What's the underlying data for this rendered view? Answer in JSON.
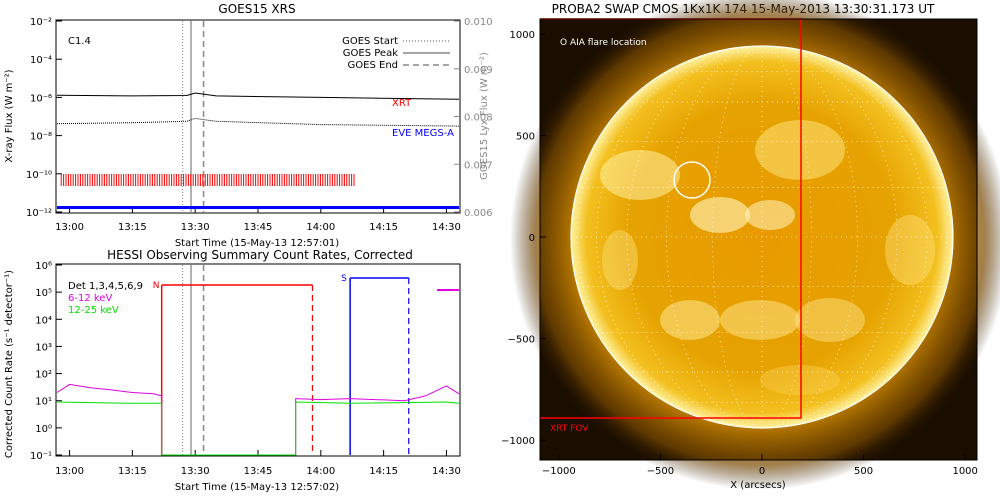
{
  "goes": {
    "title": "GOES15 XRS",
    "flare_class": "C1.4",
    "ylabel_left": "X-ray Flux (W m⁻²)",
    "ylabel_right": "GOES15 Lyx Flux (W m⁻²)",
    "xlabel": "Start Time (15-May-13 12:57:01)",
    "legend": [
      "GOES Start",
      "GOES Peak",
      "GOES End"
    ],
    "series_labels": {
      "xrt": "XRT",
      "eve": "EVE MEGS-A"
    },
    "y_ticks": [
      "10⁻²",
      "10⁻⁴",
      "10⁻⁶",
      "10⁻⁸",
      "10⁻¹⁰",
      "10⁻¹²"
    ],
    "y2_ticks": [
      "0.010",
      "0.009",
      "0.008",
      "0.007",
      "0.006"
    ],
    "x_ticks": [
      "13:00",
      "13:15",
      "13:30",
      "13:45",
      "14:00",
      "14:15",
      "14:30"
    ]
  },
  "hessi": {
    "title": "HESSI Observing Summary Count Rates, Corrected",
    "ylabel": "Corrected Count Rate (s⁻¹ detector⁻¹)",
    "xlabel": "Start Time (15-May-13 12:57:02)",
    "legend": [
      {
        "text": "Det 1,3,4,5,6,9",
        "color": "#000000"
      },
      {
        "text": "6-12 keV",
        "color": "#e000e0"
      },
      {
        "text": "12-25 keV",
        "color": "#00e000"
      }
    ],
    "flag_labels": {
      "n": "N",
      "s": "S"
    },
    "y_ticks": [
      "10⁶",
      "10⁵",
      "10⁴",
      "10³",
      "10²",
      "10¹",
      "10⁰",
      "10⁻¹"
    ],
    "x_ticks": [
      "13:00",
      "13:15",
      "13:30",
      "13:45",
      "14:00",
      "14:15",
      "14:30"
    ]
  },
  "swap": {
    "title": "PROBA2 SWAP CMOS 1Kx1K 174 15-May-2013 13:30:31.173 UT",
    "legend": "O AIA flare location",
    "fov_label": "XRT FOV",
    "xlabel": "X (arcsecs)",
    "x_ticks": [
      "−1000",
      "−500",
      "0",
      "500",
      "1000"
    ],
    "y_ticks": [
      "1000",
      "500",
      "0",
      "−500",
      "−1000"
    ]
  },
  "colors": {
    "xrt": "#ff0000",
    "eve": "#0000ff",
    "hessi_magenta": "#e000e0",
    "hessi_green": "#00e000",
    "sun": "#e8a000"
  },
  "chart_data": [
    {
      "type": "line",
      "title": "GOES15 XRS",
      "xlabel": "Start Time (15-May-13 12:57:01)",
      "ylabel": "X-ray Flux (W m⁻²)",
      "y_scale": "log",
      "ylim": [
        1e-12,
        0.01
      ],
      "y2lim": [
        0.006,
        0.01
      ],
      "xlim": [
        "12:57",
        "14:33"
      ],
      "x_tick_labels": [
        "13:00",
        "13:15",
        "13:30",
        "13:45",
        "14:00",
        "14:15",
        "14:30"
      ],
      "vlines": [
        {
          "name": "GOES Start",
          "time": "13:27",
          "style": "dotted"
        },
        {
          "name": "GOES Peak",
          "time": "13:29",
          "style": "solid"
        },
        {
          "name": "GOES End",
          "time": "13:32",
          "style": "dashed"
        }
      ],
      "series": [
        {
          "name": "XRT",
          "color": "#000000",
          "x": [
            "12:57",
            "13:15",
            "13:28",
            "13:30",
            "13:35",
            "14:00",
            "14:33"
          ],
          "y": [
            1.3e-06,
            1.2e-06,
            1.25e-06,
            1.7e-06,
            1.2e-06,
            1e-06,
            8e-07
          ]
        },
        {
          "name": "EVE MEGS-A",
          "color": "#000000",
          "x": [
            "12:57",
            "13:15",
            "13:28",
            "13:30",
            "13:35",
            "14:00",
            "14:33"
          ],
          "y": [
            0.00785,
            0.00787,
            0.0079,
            0.00796,
            0.0079,
            0.00783,
            0.0078
          ]
        },
        {
          "name": "XRT exposures",
          "color": "#ff0000",
          "x_range": [
            "12:58",
            "14:08"
          ]
        },
        {
          "name": "EVE MEGS-A coverage",
          "color": "#0000ff",
          "x_range": [
            "12:57",
            "14:33"
          ]
        }
      ]
    },
    {
      "type": "line",
      "title": "HESSI Observing Summary Count Rates, Corrected",
      "xlabel": "Start Time (15-May-13 12:57:02)",
      "ylabel": "Corrected Count Rate (s⁻¹ detector⁻¹)",
      "y_scale": "log",
      "ylim": [
        0.1,
        1000000.0
      ],
      "xlim": [
        "12:57",
        "14:33"
      ],
      "x_tick_labels": [
        "13:00",
        "13:15",
        "13:30",
        "13:45",
        "14:00",
        "14:15",
        "14:30"
      ],
      "series": [
        {
          "name": "6-12 keV",
          "color": "#e000e0",
          "x": [
            "12:57",
            "13:00",
            "13:05",
            "13:10",
            "13:15",
            "13:20",
            "13:22",
            "13:54",
            "14:00",
            "14:07",
            "14:20",
            "14:25",
            "14:30",
            "14:33"
          ],
          "y": [
            20,
            40,
            30,
            25,
            20,
            18,
            15,
            12,
            11,
            12,
            10,
            15,
            35,
            18
          ]
        },
        {
          "name": "12-25 keV",
          "color": "#00e000",
          "x": [
            "12:57",
            "13:05",
            "13:15",
            "13:22",
            "13:54",
            "14:07",
            "14:20",
            "14:30",
            "14:33"
          ],
          "y": [
            9,
            8.5,
            8,
            8,
            9,
            8,
            8.5,
            9,
            8
          ]
        }
      ],
      "flags": [
        {
          "label": "N",
          "color": "#ff0000",
          "x_range": [
            "13:22",
            "13:58"
          ]
        },
        {
          "label": "S",
          "color": "#0000ff",
          "x_range": [
            "14:07",
            "14:21"
          ]
        }
      ]
    }
  ]
}
